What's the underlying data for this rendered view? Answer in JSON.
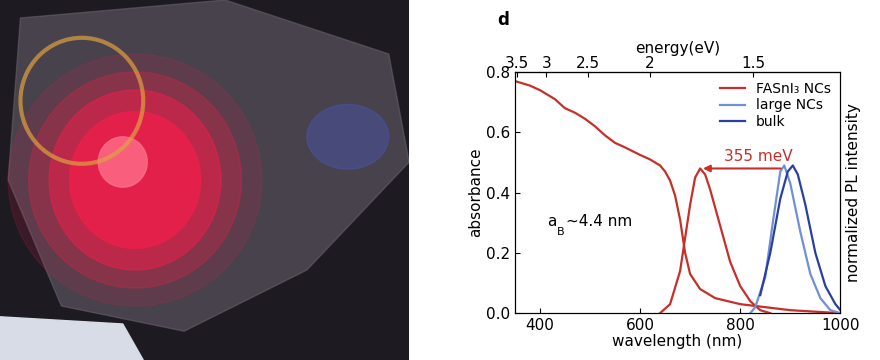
{
  "chart_data": {
    "type": "line",
    "panel_label": "d",
    "xlabel": "wavelength (nm)",
    "ylabel": "absorbance",
    "y2label": "normalized PL intensity",
    "x2label": "energy(eV)",
    "xlim": [
      350,
      1000
    ],
    "xticks": [
      400,
      600,
      800,
      1000
    ],
    "ylim": [
      0.0,
      0.8
    ],
    "yticks": [
      0.0,
      0.2,
      0.4,
      0.6,
      0.8
    ],
    "y2lim": [
      0,
      1.6
    ],
    "y2ticks": [],
    "x2lim": [
      3.542,
      1.24
    ],
    "x2ticks": [
      3.5,
      3,
      2.5,
      2,
      1.5
    ],
    "legend": "upper right",
    "series": [
      {
        "color": "#c62f2a",
        "axis": "y",
        "line_style": "solid",
        "x": [
          350,
          380,
          400,
          430,
          450,
          470,
          490,
          510,
          530,
          550,
          570,
          600,
          620,
          640,
          650,
          660,
          670,
          680,
          690,
          700,
          720,
          750,
          800,
          850,
          900,
          950,
          1000
        ],
        "values": [
          0.77,
          0.755,
          0.74,
          0.71,
          0.68,
          0.665,
          0.645,
          0.62,
          0.59,
          0.565,
          0.55,
          0.525,
          0.51,
          0.49,
          0.47,
          0.44,
          0.39,
          0.31,
          0.2,
          0.13,
          0.08,
          0.05,
          0.03,
          0.02,
          0.01,
          0.005,
          0.0
        ]
      },
      {
        "name": "FASnI₃ NCs",
        "color": "#c62f2a",
        "axis": "y2",
        "line_style": "solid",
        "x": [
          640,
          660,
          680,
          700,
          710,
          720,
          730,
          740,
          760,
          780,
          800,
          820,
          840,
          860
        ],
        "values": [
          0.0,
          0.06,
          0.28,
          0.72,
          0.9,
          0.96,
          0.92,
          0.82,
          0.58,
          0.34,
          0.18,
          0.08,
          0.02,
          0.0
        ]
      },
      {
        "name": "large NCs",
        "color": "#6f8fd8",
        "axis": "y2",
        "line_style": "solid",
        "x": [
          820,
          830,
          850,
          865,
          880,
          888,
          900,
          920,
          940,
          960,
          980,
          1000
        ],
        "values": [
          0.0,
          0.04,
          0.24,
          0.6,
          0.94,
          0.98,
          0.86,
          0.54,
          0.26,
          0.1,
          0.02,
          0.0
        ]
      },
      {
        "name": "bulk",
        "color": "#2b3f9e",
        "axis": "y2",
        "line_style": "solid",
        "x": [
          840,
          860,
          880,
          895,
          905,
          915,
          930,
          950,
          970,
          990,
          1000
        ],
        "values": [
          0.12,
          0.4,
          0.76,
          0.94,
          0.98,
          0.92,
          0.72,
          0.4,
          0.18,
          0.06,
          0.02
        ]
      }
    ],
    "annotations": [
      {
        "text": "355 meV",
        "color": "#c62f2a"
      },
      {
        "text": "a",
        "subscript": "B",
        "suffix": "~4.4 nm"
      }
    ]
  }
}
